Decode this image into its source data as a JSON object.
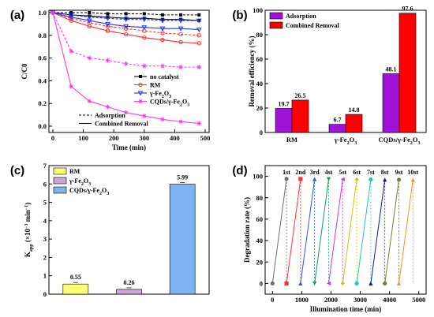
{
  "panels": {
    "a": "(a)",
    "b": "(b)",
    "c": "(c)",
    "d": "(d)"
  },
  "chart_data": [
    {
      "id": "a",
      "type": "line",
      "xlabel": "Time (min)",
      "ylabel": "C/C0",
      "xlim": [
        0,
        500
      ],
      "ylim": [
        0.0,
        1.0
      ],
      "xticks": [
        "0",
        "100",
        "200",
        "300",
        "400",
        "500"
      ],
      "yticks": [
        "0.0",
        "0.2",
        "0.4",
        "0.6",
        "0.8",
        "1.0"
      ],
      "legend_position": "center-right",
      "legend": [
        "no catalyst",
        "RM",
        "γ-Fe2O3",
        "CQDs/γ-Fe2O3",
        "Adsorption",
        "Combined Removal"
      ],
      "x": [
        0,
        60,
        120,
        180,
        240,
        300,
        360,
        420,
        480
      ],
      "series": [
        {
          "name": "no catalyst",
          "mode": "Adsorption",
          "color": "#000000",
          "values": [
            1.0,
            1.0,
            1.0,
            0.99,
            0.99,
            0.99,
            0.98,
            0.98,
            0.98
          ]
        },
        {
          "name": "no catalyst",
          "mode": "Combined Removal",
          "color": "#000000",
          "values": [
            1.0,
            0.98,
            0.97,
            0.96,
            0.95,
            0.95,
            0.94,
            0.94,
            0.93
          ]
        },
        {
          "name": "RM",
          "mode": "Adsorption",
          "color": "#ff2a2a",
          "values": [
            1.0,
            0.95,
            0.91,
            0.88,
            0.86,
            0.84,
            0.82,
            0.81,
            0.8
          ]
        },
        {
          "name": "RM",
          "mode": "Combined Removal",
          "color": "#ff2a2a",
          "values": [
            1.0,
            0.93,
            0.88,
            0.84,
            0.81,
            0.78,
            0.76,
            0.74,
            0.73
          ]
        },
        {
          "name": "γ-Fe2O3",
          "mode": "Adsorption",
          "color": "#2233ee",
          "values": [
            1.0,
            0.98,
            0.96,
            0.95,
            0.94,
            0.94,
            0.93,
            0.93,
            0.93
          ]
        },
        {
          "name": "γ-Fe2O3",
          "mode": "Combined Removal",
          "color": "#2233ee",
          "values": [
            1.0,
            0.96,
            0.93,
            0.9,
            0.88,
            0.87,
            0.86,
            0.86,
            0.85
          ]
        },
        {
          "name": "CQDs/γ-Fe2O3",
          "mode": "Adsorption",
          "color": "#ff33ff",
          "values": [
            1.0,
            0.66,
            0.6,
            0.58,
            0.55,
            0.53,
            0.53,
            0.52,
            0.52
          ]
        },
        {
          "name": "CQDs/γ-Fe2O3",
          "mode": "Combined Removal",
          "color": "#ff33ff",
          "values": [
            1.0,
            0.35,
            0.22,
            0.17,
            0.12,
            0.09,
            0.06,
            0.04,
            0.025
          ]
        }
      ]
    },
    {
      "id": "b",
      "type": "bar",
      "ylabel": "Removal efficiency (%)",
      "ylim": [
        0,
        100
      ],
      "yticks": [
        "0",
        "20",
        "40",
        "60",
        "80",
        "100"
      ],
      "categories": [
        "RM",
        "γ-Fe2O3",
        "CQDs/γ-Fe2O3"
      ],
      "legend_position": "top-left",
      "series": [
        {
          "name": "Adsorption",
          "color": "#a012d8",
          "values": [
            19.7,
            6.7,
            48.1
          ],
          "labels": [
            "19.7",
            "6.7",
            "48.1"
          ]
        },
        {
          "name": "Combined Removal",
          "color": "#ff0000",
          "values": [
            26.5,
            14.8,
            97.6
          ],
          "labels": [
            "26.5",
            "14.8",
            "97.6"
          ]
        }
      ]
    },
    {
      "id": "c",
      "type": "bar",
      "ylabel": "Kapp (×10−3 min−1)",
      "ylim": [
        0,
        7
      ],
      "yticks": [
        "0",
        "1",
        "2",
        "3",
        "4",
        "5",
        "6",
        "7"
      ],
      "categories": [
        "RM",
        "γ-Fe2O3",
        "CQDs/γ-Fe2O3"
      ],
      "legend_position": "top-left",
      "series": [
        {
          "name": "Kapp",
          "colors": [
            "#ffff77",
            "#c9a6d6",
            "#7fb2f5"
          ],
          "values": [
            0.55,
            0.26,
            5.99
          ],
          "labels": [
            "0.55",
            "0.26",
            "5.99"
          ],
          "legend": [
            "RM",
            "γ-Fe2O3",
            "CQDs/γ-Fe2O3"
          ]
        }
      ]
    },
    {
      "id": "d",
      "type": "line",
      "xlabel": "Illumination time (min)",
      "ylabel": "Degradation rate (%)",
      "xlim": [
        -250,
        5250
      ],
      "ylim": [
        -10,
        110
      ],
      "xticks": [
        "0",
        "1000",
        "2000",
        "3000",
        "4000",
        "5000"
      ],
      "yticks": [
        "0",
        "20",
        "40",
        "60",
        "80",
        "100"
      ],
      "cycles": [
        "1st",
        "2nd",
        "3rd",
        "4st",
        "5st",
        "6st",
        "7st",
        "8st",
        "9st",
        "10st"
      ],
      "cycle_start": [
        0,
        480,
        960,
        1440,
        1920,
        2400,
        2880,
        3360,
        3840,
        4320
      ],
      "cycle_end_value": [
        97.6,
        97.5,
        97.4,
        97.3,
        97.2,
        97.1,
        97.0,
        96.9,
        96.8,
        96.6
      ],
      "colors": [
        "#6d6d6d",
        "#ff3030",
        "#1e5cff",
        "#0b9e55",
        "#cf2fe0",
        "#c8c800",
        "#1cc6c6",
        "#0a1aa0",
        "#7c7c2a",
        "#ff8a1c"
      ]
    }
  ]
}
